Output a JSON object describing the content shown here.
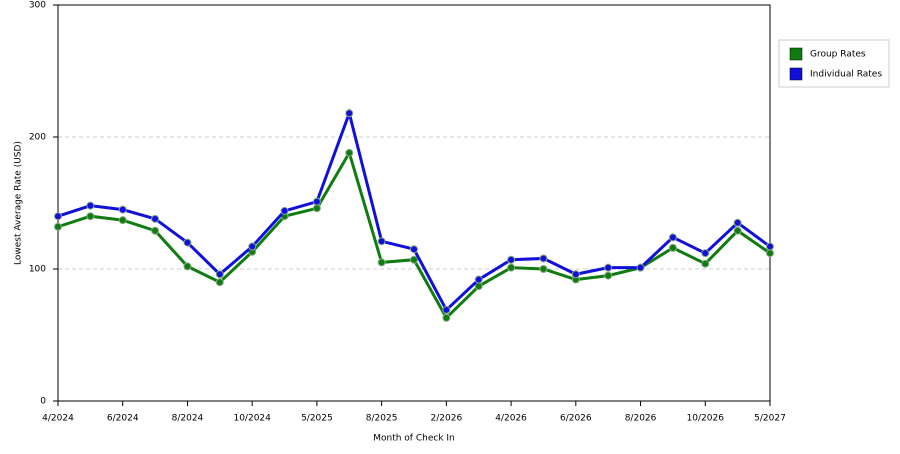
{
  "chart_data": {
    "type": "line",
    "x_label": "Month of Check In",
    "y_label": "Lowest Average Rate (USD)",
    "categories": [
      "4/2024",
      null,
      "6/2024",
      null,
      "8/2024",
      null,
      "10/2024",
      null,
      "5/2025",
      null,
      "8/2025",
      null,
      "2/2026",
      null,
      "4/2026",
      null,
      "6/2026",
      null,
      "8/2026",
      null,
      "10/2026",
      null,
      "5/2027"
    ],
    "series": [
      {
        "name": "Group Rates",
        "color": "#107c10",
        "values": [
          132,
          140,
          137,
          129,
          102,
          90,
          113,
          140,
          146,
          188,
          105,
          107,
          63,
          87,
          101,
          100,
          92,
          95,
          101,
          116,
          104,
          129,
          112
        ]
      },
      {
        "name": "Individual Rates",
        "color": "#1010d8",
        "values": [
          140,
          148,
          145,
          138,
          120,
          96,
          117,
          144,
          151,
          218,
          121,
          115,
          69,
          92,
          107,
          108,
          96,
          101,
          101,
          124,
          112,
          135,
          117
        ]
      }
    ],
    "ylim": [
      0,
      300
    ],
    "yticks": [
      0,
      100,
      200,
      300
    ],
    "grid": true,
    "legend": "right"
  }
}
